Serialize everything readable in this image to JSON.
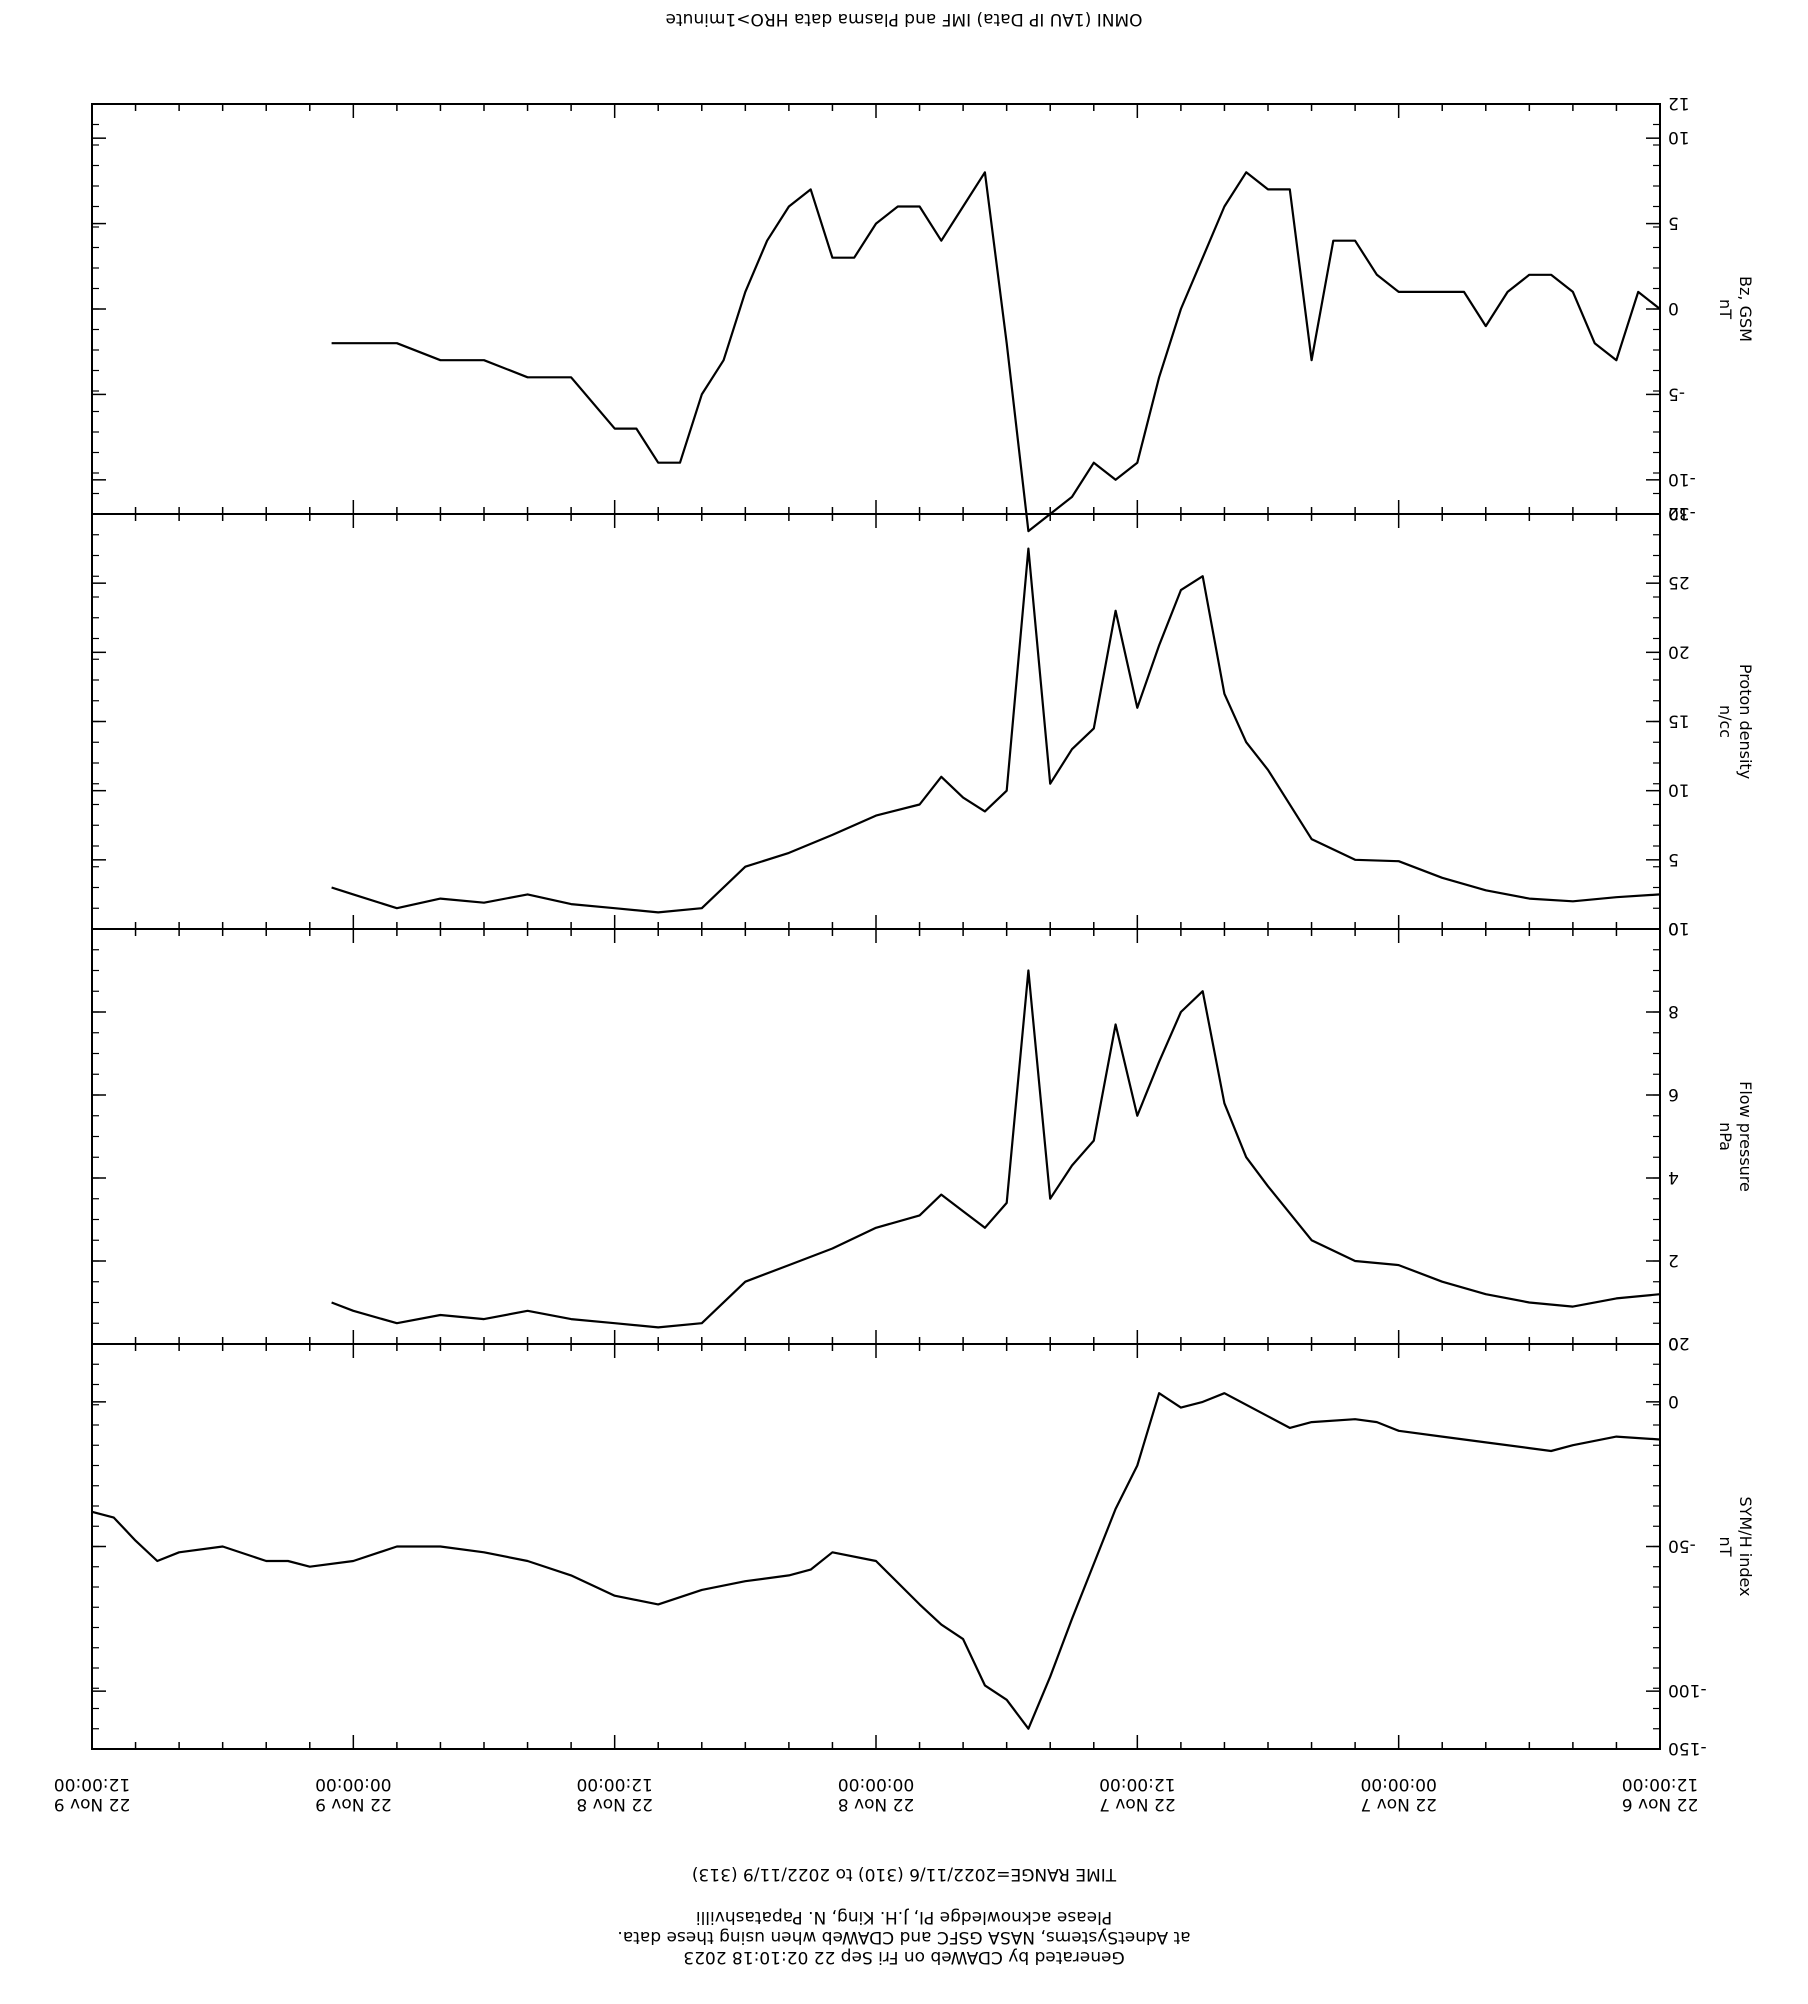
{
  "header": {
    "line1": "Generated by CDAWeb on Fri Sep 22 02:10:18 2023",
    "line2": "at AdnetSystems, NASA GSFC and CDAWeb when using these data.",
    "line3": "Please acknowledge PI, J.H. King, N. Papatashvilli",
    "time_range": "TIME RANGE=2022/11/6 (310) to 2022/11/9 (313)"
  },
  "footer": "OMNI (1AU IP Data)  IMF and Plasma data  HRO>1minute",
  "colors": {
    "line": "#000000",
    "background": "#ffffff"
  },
  "chart_data": {
    "type": "line",
    "x_ticks": [
      {
        "date": "22 Nov  6",
        "time": "12:00:00",
        "hours": 0
      },
      {
        "date": "22 Nov  7",
        "time": "00:00:00",
        "hours": 12
      },
      {
        "date": "22 Nov  7",
        "time": "12:00:00",
        "hours": 24
      },
      {
        "date": "22 Nov  8",
        "time": "00:00:00",
        "hours": 36
      },
      {
        "date": "22 Nov  8",
        "time": "12:00:00",
        "hours": 48
      },
      {
        "date": "22 Nov  9",
        "time": "00:00:00",
        "hours": 60
      },
      {
        "date": "22 Nov  9",
        "time": "12:00:00",
        "hours": 72
      }
    ],
    "xlim": [
      0,
      72
    ],
    "panels": [
      {
        "ylabel": "SYM/H index",
        "unit": "nT",
        "ylim": [
          20,
          -120
        ],
        "ticks": [
          20,
          0,
          -50,
          -100,
          -150
        ],
        "x": [
          0,
          2,
          4,
          5,
          6,
          8,
          10,
          12,
          13,
          14,
          16,
          17,
          18,
          20,
          21,
          22,
          23,
          24,
          25,
          26,
          27,
          28,
          29,
          30,
          31,
          32,
          33,
          34,
          36,
          38,
          39,
          40,
          42,
          44,
          46,
          48,
          50,
          52,
          54,
          56,
          58,
          60,
          62,
          63,
          64,
          66,
          68,
          69,
          70,
          71,
          72
        ],
        "values": [
          -13,
          -12,
          -15,
          -17,
          -16,
          -14,
          -12,
          -10,
          -7,
          -6,
          -7,
          -9,
          -5,
          3,
          0,
          -2,
          3,
          -22,
          -37,
          -56,
          -75,
          -95,
          -113,
          -103,
          -98,
          -82,
          -77,
          -70,
          -55,
          -52,
          -58,
          -60,
          -62,
          -65,
          -70,
          -67,
          -60,
          -55,
          -52,
          -50,
          -50,
          -55,
          -57,
          -55,
          -55,
          -50,
          -52,
          -55,
          -48,
          -40,
          -38
        ]
      },
      {
        "ylabel": "Flow pressure",
        "unit": "nPa",
        "ylim": [
          10,
          0
        ],
        "ticks": [
          10,
          8,
          6,
          4,
          2,
          0
        ],
        "x": [
          0,
          2,
          4,
          6,
          8,
          10,
          12,
          14,
          16,
          18,
          19,
          20,
          21,
          22,
          23,
          24,
          25,
          26,
          27,
          28,
          29,
          30,
          31,
          32,
          33,
          34,
          36,
          38,
          40,
          42,
          44,
          46,
          48,
          50,
          52,
          54,
          56,
          58,
          60,
          61
        ],
        "values": [
          1.2,
          1.1,
          0.9,
          1.0,
          1.2,
          1.5,
          1.9,
          2.0,
          2.5,
          3.8,
          4.5,
          5.8,
          8.5,
          8.0,
          6.8,
          5.5,
          7.7,
          4.9,
          4.3,
          3.5,
          9.0,
          3.4,
          2.8,
          3.2,
          3.6,
          3.1,
          2.8,
          2.3,
          1.9,
          1.5,
          0.5,
          0.4,
          0.5,
          0.6,
          0.8,
          0.6,
          0.7,
          0.5,
          0.8,
          1.0
        ]
      },
      {
        "ylabel": "Proton density",
        "unit": "n/cc",
        "ylim": [
          30,
          0
        ],
        "ticks": [
          30,
          25,
          20,
          15,
          10,
          5,
          0
        ],
        "x": [
          0,
          2,
          4,
          6,
          8,
          10,
          12,
          14,
          16,
          18,
          19,
          20,
          21,
          22,
          23,
          24,
          25,
          26,
          27,
          28,
          29,
          30,
          31,
          32,
          33,
          34,
          36,
          38,
          40,
          42,
          44,
          46,
          48,
          50,
          52,
          54,
          56,
          58,
          60,
          61
        ],
        "values": [
          2.5,
          2.3,
          2.0,
          2.2,
          2.8,
          3.7,
          4.9,
          5.0,
          6.5,
          11.5,
          13.5,
          17.0,
          25.5,
          24.5,
          20.5,
          16.0,
          23.0,
          14.5,
          13.0,
          10.5,
          27.5,
          10.0,
          8.5,
          9.5,
          11.0,
          9.0,
          8.2,
          6.8,
          5.5,
          4.5,
          1.5,
          1.2,
          1.5,
          1.8,
          2.5,
          1.9,
          2.2,
          1.5,
          2.5,
          3.0
        ]
      },
      {
        "ylabel": "Bz, GSM",
        "unit": "nT",
        "ylim": [
          12,
          -12
        ],
        "ticks": [
          12,
          10,
          5,
          0,
          -5,
          -10,
          -12
        ],
        "x": [
          0,
          1,
          2,
          3,
          4,
          5,
          6,
          7,
          8,
          9,
          10,
          11,
          12,
          13,
          14,
          15,
          16,
          17,
          18,
          19,
          20,
          21,
          22,
          23,
          24,
          25,
          26,
          27,
          28,
          29,
          30,
          31,
          32,
          33,
          34,
          35,
          36,
          37,
          38,
          39,
          40,
          41,
          42,
          43,
          44,
          45,
          46,
          47,
          48,
          50,
          52,
          54,
          56,
          58,
          60,
          61
        ],
        "values": [
          0,
          1,
          -3,
          -2,
          1,
          2,
          2,
          1,
          -1,
          1,
          1,
          1,
          1,
          2,
          4,
          4,
          -3,
          7,
          7,
          8,
          6,
          3,
          0,
          -4,
          -9,
          -10,
          -9,
          -11,
          -12,
          -13,
          -2,
          8,
          6,
          4,
          6,
          6,
          5,
          3,
          3,
          7,
          6,
          4,
          1,
          -3,
          -5,
          -9,
          -9,
          -7,
          -7,
          -4,
          -4,
          -3,
          -3,
          -2,
          -2,
          -2
        ]
      }
    ]
  }
}
